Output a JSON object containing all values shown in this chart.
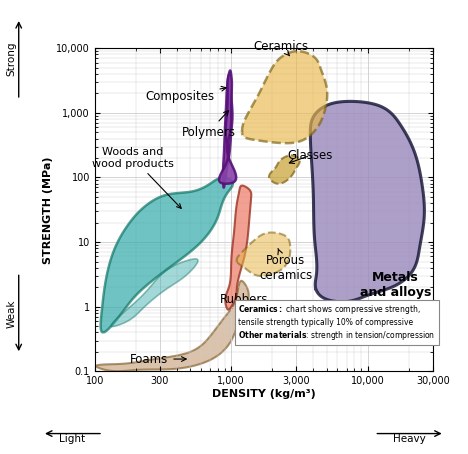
{
  "xlabel": "DENSITY (kg/m³)",
  "ylabel": "STRENGTH (MPa)",
  "xticks": [
    100,
    300,
    1000,
    3000,
    10000,
    30000
  ],
  "xtick_labels": [
    "100",
    "300",
    "1,000",
    "3,000",
    "10,000",
    "30,000"
  ],
  "yticks": [
    0.1,
    1,
    10,
    100,
    1000,
    10000
  ],
  "ytick_labels": [
    "0.1",
    "1",
    "10",
    "100",
    "1,000",
    "10,000"
  ],
  "grid_color": "#cccccc",
  "bg_color": "#ffffff",
  "metals_color": "#9988bb",
  "metals_edge": "#111133",
  "ceramics_color": "#e8b84b",
  "ceramics_edge": "#7a6010",
  "composites_color": "#8844aa",
  "composites_edge": "#551177",
  "polymers_color": "#882299",
  "polymers_edge": "#551177",
  "woods_color": "#33aaaa",
  "woods_edge": "#117766",
  "woods_inner_color": "#33aaaa",
  "rubbers_color": "#ee8877",
  "rubbers_edge": "#993322",
  "foams_color": "#ccaa88",
  "foams_edge": "#886633",
  "glasses_color": "#c8a030",
  "glasses_edge": "#7a6010",
  "porous_color": "#e8b84b",
  "porous_edge": "#7a6010"
}
